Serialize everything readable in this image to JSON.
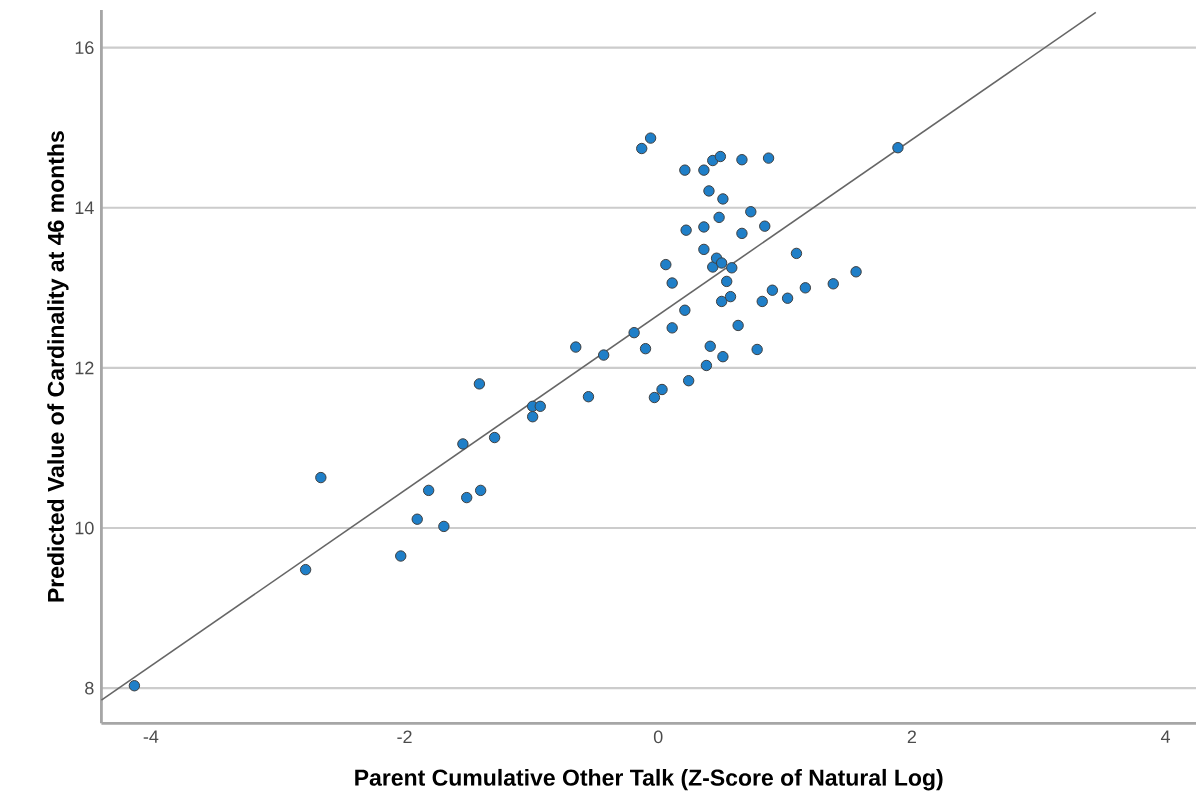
{
  "chart_data": {
    "type": "scatter",
    "xlabel": "Parent Cumulative Other Talk (Z-Score of Natural Log)",
    "ylabel": "Predicted Value of Cardinality at 46 months",
    "xlim": [
      -4.39,
      4.24
    ],
    "ylim": [
      7.56,
      16.47
    ],
    "xticks": [
      -4,
      -2,
      0,
      2,
      4
    ],
    "yticks": [
      8,
      10,
      12,
      14,
      16
    ],
    "grid": "y",
    "series": [
      {
        "color": "#1f7fc8",
        "marker": "circle",
        "x": [
          -4.13,
          -2.78,
          -2.66,
          -2.03,
          -1.9,
          -1.81,
          -1.69,
          -1.54,
          -1.51,
          -1.41,
          -1.4,
          -1.29,
          -0.99,
          -0.93,
          -0.99,
          -0.65,
          -0.55,
          -0.43,
          -0.19,
          -0.13,
          -0.06,
          -0.1,
          -0.03,
          0.03,
          0.06,
          0.11,
          0.11,
          0.21,
          0.21,
          0.22,
          0.24,
          0.36,
          0.36,
          0.36,
          0.38,
          0.4,
          0.41,
          0.43,
          0.43,
          0.46,
          0.48,
          0.49,
          0.5,
          0.5,
          0.51,
          0.51,
          0.54,
          0.57,
          0.58,
          0.63,
          0.66,
          0.66,
          0.73,
          0.78,
          0.82,
          0.84,
          0.87,
          0.9,
          1.02,
          1.09,
          1.16,
          1.38,
          1.56,
          1.89
        ],
        "values": [
          8.03,
          9.48,
          10.63,
          9.65,
          10.11,
          10.47,
          10.02,
          11.05,
          10.38,
          11.8,
          10.47,
          11.13,
          11.52,
          11.52,
          11.39,
          12.26,
          11.64,
          12.16,
          12.44,
          14.74,
          14.87,
          12.24,
          11.63,
          11.73,
          13.29,
          13.06,
          12.5,
          14.47,
          12.72,
          13.72,
          11.84,
          14.47,
          13.76,
          13.48,
          12.03,
          14.21,
          12.27,
          14.59,
          13.26,
          13.37,
          13.88,
          14.64,
          13.31,
          12.83,
          14.11,
          12.14,
          13.08,
          12.89,
          13.25,
          12.53,
          14.6,
          13.68,
          13.95,
          12.23,
          12.83,
          13.77,
          14.62,
          12.97,
          12.87,
          13.43,
          13.0,
          13.05,
          13.2,
          14.75
        ]
      },
      {
        "type": "line",
        "color": "#666666",
        "marker": "none",
        "x": [
          -4.39,
          3.45
        ],
        "values": [
          7.85,
          16.44
        ]
      }
    ]
  }
}
